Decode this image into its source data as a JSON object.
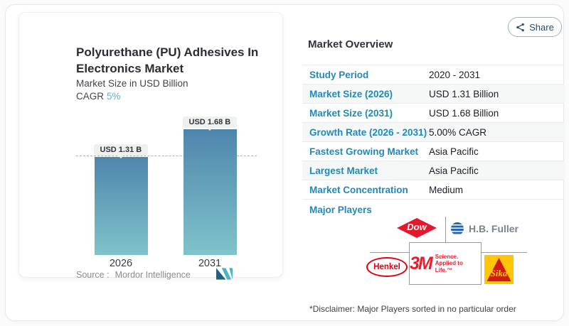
{
  "share_button": {
    "label": "Share"
  },
  "chart_data": {
    "type": "bar",
    "title": "Polyurethane (PU) Adhesives In Electronics Market",
    "title_lines": [
      "Polyurethane (PU) Adhesives In",
      "Electronics Market"
    ],
    "subtitle": "Market Size in USD Billion",
    "cagr_label": "CAGR",
    "cagr_value": "5%",
    "categories": [
      "2026",
      "2031"
    ],
    "values": [
      1.31,
      1.68
    ],
    "bar_labels": [
      "USD 1.31 B",
      "USD 1.68 B"
    ],
    "reference_line_value": 1.31,
    "ylim": [
      0,
      1.9
    ],
    "grid": false,
    "legend": false,
    "bar_gradient_top": "#4e86ac",
    "bar_gradient_bottom": "#80c3ca",
    "source_label": "Source :",
    "source_value": "Mordor Intelligence"
  },
  "overview": {
    "heading": "Market Overview",
    "rows": [
      {
        "label": "Study Period",
        "value": "2020 - 2031"
      },
      {
        "label": "Market Size (2026)",
        "value": "USD 1.31 Billion"
      },
      {
        "label": "Market Size (2031)",
        "value": "USD 1.68 Billion"
      },
      {
        "label": "Growth Rate (2026 - 2031)",
        "value": "5.00% CAGR"
      },
      {
        "label": "Fastest Growing Market",
        "value": "Asia Pacific"
      },
      {
        "label": "Largest Market",
        "value": "Asia Pacific"
      },
      {
        "label": "Market Concentration",
        "value": "Medium"
      }
    ],
    "major_players_label": "Major Players",
    "players": {
      "dow": "Dow",
      "hb_fuller": "H.B. Fuller",
      "henkel": "Henkel",
      "mmm": "3M",
      "mmm_tagline_1": "Science.",
      "mmm_tagline_2": "Applied to Life.™",
      "sika": "Sika"
    },
    "disclaimer": "*Disclaimer: Major Players sorted in no particular order"
  },
  "colors": {
    "accent_blue": "#2089ba",
    "cagr_teal": "#64aecd",
    "dow_red": "#e2182d",
    "henkel_red": "#e1000f",
    "mmm_red": "#ee1b2d",
    "sika_yellow": "#fec50a",
    "sika_red": "#d11919",
    "hbfuller_blue": "#2566af"
  }
}
